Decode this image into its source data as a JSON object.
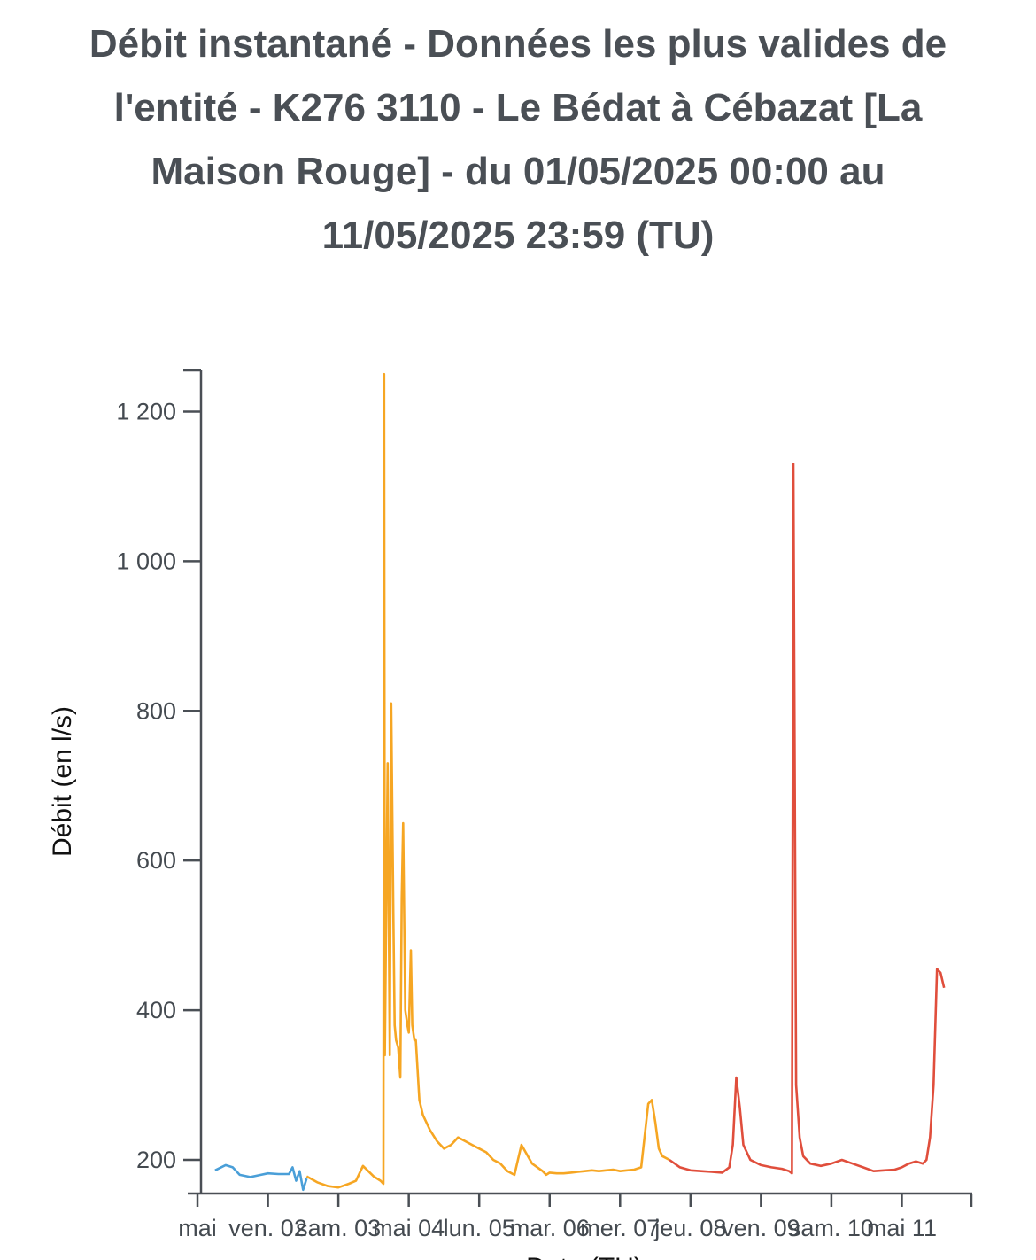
{
  "chart_data": {
    "type": "line",
    "title": "Débit instantané - Données les plus valides de l'entité - K276 3110 - Le Bédat à Cébazat [La Maison Rouge] - du 01/05/2025 00:00 au 11/05/2025 23:59 (TU)",
    "ylabel": "Débit (en l/s)",
    "xlabel": "Date (TU)",
    "ylim": [
      155,
      1255
    ],
    "xlim": [
      1.05,
      12.0
    ],
    "y_ticks": [
      200,
      400,
      600,
      800,
      1000,
      1200
    ],
    "y_tick_labels": [
      "200",
      "400",
      "600",
      "800",
      "1 000",
      "1 200"
    ],
    "x_ticks": [
      1,
      2,
      3,
      4,
      5,
      6,
      7,
      8,
      9,
      10,
      11
    ],
    "x_tick_labels": [
      "mai",
      "ven. 02",
      "sam. 03",
      "mai 04",
      "lun. 05",
      "mar. 06",
      "mer. 07",
      "jeu. 08",
      "ven. 09",
      "sam. 10",
      "mai 11"
    ],
    "grid": false,
    "legend": "none",
    "series": [
      {
        "color": "#4a9fd8",
        "x": [
          1.25,
          1.4,
          1.5,
          1.6,
          1.75,
          1.9,
          2.0,
          2.15,
          2.3,
          2.35,
          2.4,
          2.45,
          2.5,
          2.55
        ],
        "y": [
          186,
          193,
          190,
          180,
          177,
          180,
          182,
          181,
          181,
          190,
          172,
          185,
          160,
          175
        ]
      },
      {
        "color": "#f6a623",
        "x": [
          2.55,
          2.7,
          2.85,
          3.0,
          3.15,
          3.25,
          3.35,
          3.5,
          3.6,
          3.64,
          3.65,
          3.66,
          3.7,
          3.73,
          3.75,
          3.78,
          3.8,
          3.82,
          3.85,
          3.88,
          3.9,
          3.92,
          3.95,
          3.98,
          4.0,
          4.03,
          4.05,
          4.08,
          4.1,
          4.15,
          4.2,
          4.3,
          4.4,
          4.5,
          4.6,
          4.7,
          4.8,
          4.9,
          5.0,
          5.1,
          5.2,
          5.3,
          5.4,
          5.5,
          5.55,
          5.6,
          5.75,
          5.9,
          5.95,
          6.0,
          6.1,
          6.2,
          6.3,
          6.4,
          6.5,
          6.6,
          6.7,
          6.8,
          6.9,
          7.0,
          7.1,
          7.2,
          7.3,
          7.4,
          7.45,
          7.5,
          7.55,
          7.6,
          7.7
        ],
        "y": [
          178,
          170,
          165,
          163,
          168,
          172,
          192,
          178,
          172,
          168,
          1250,
          340,
          730,
          340,
          810,
          530,
          380,
          360,
          350,
          310,
          550,
          650,
          400,
          380,
          370,
          480,
          380,
          360,
          360,
          280,
          260,
          240,
          225,
          215,
          220,
          230,
          225,
          220,
          215,
          210,
          200,
          195,
          185,
          180,
          200,
          220,
          195,
          185,
          180,
          183,
          182,
          182,
          183,
          184,
          185,
          186,
          185,
          186,
          187,
          185,
          186,
          187,
          190,
          275,
          280,
          250,
          215,
          205,
          200
        ]
      },
      {
        "color": "#e04e3c",
        "x": [
          7.7,
          7.85,
          8.0,
          8.15,
          8.3,
          8.45,
          8.55,
          8.6,
          8.65,
          8.7,
          8.75,
          8.85,
          9.0,
          9.15,
          9.3,
          9.4,
          9.44,
          9.46,
          9.5,
          9.55,
          9.6,
          9.7,
          9.85,
          10.0,
          10.15,
          10.3,
          10.45,
          10.6,
          10.75,
          10.9,
          11.0,
          11.1,
          11.2,
          11.3,
          11.35,
          11.4,
          11.45,
          11.5,
          11.55,
          11.6
        ],
        "y": [
          200,
          190,
          186,
          185,
          184,
          183,
          190,
          220,
          310,
          270,
          220,
          200,
          193,
          190,
          188,
          185,
          182,
          1130,
          300,
          230,
          205,
          195,
          192,
          195,
          200,
          195,
          190,
          185,
          186,
          187,
          190,
          195,
          198,
          195,
          200,
          230,
          300,
          455,
          450,
          430
        ]
      }
    ]
  }
}
